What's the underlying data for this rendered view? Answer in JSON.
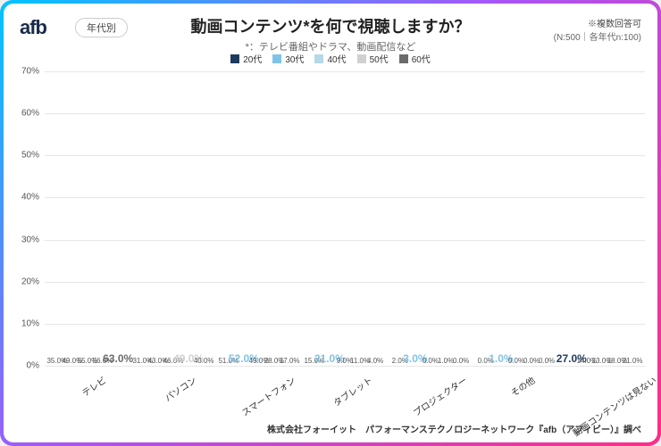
{
  "logo": "afb",
  "badge": "年代別",
  "title": "動画コンテンツ*を何で視聴しますか？",
  "subtitle": "*：テレビ番組やドラマ、動画配信など",
  "note_top": "※複数回答可",
  "note_n": "(N:500｜各年代n:100)",
  "footer": "株式会社フォーイット　パフォーマンステクノロジーネットワーク『afb（アフィビー）』調べ",
  "ymax": 70,
  "yticks": [
    0,
    10,
    20,
    30,
    40,
    50,
    60,
    70
  ],
  "series": [
    {
      "label": "20代",
      "color": "#1f3a5f"
    },
    {
      "label": "30代",
      "color": "#7fc4e8"
    },
    {
      "label": "40代",
      "color": "#b6d8e8"
    },
    {
      "label": "50代",
      "color": "#d0d0d0"
    },
    {
      "label": "60代",
      "color": "#6b6b6b"
    }
  ],
  "categories": [
    {
      "label": "テレビ",
      "values": [
        35.0,
        49.0,
        55.0,
        56.0,
        63.0
      ],
      "highlight_idx": 4
    },
    {
      "label": "パソコン",
      "values": [
        31.0,
        43.0,
        46.0,
        49.0,
        40.0
      ],
      "highlight_idx": 3
    },
    {
      "label": "スマートフォン",
      "values": [
        51.0,
        52.0,
        49.0,
        28.0,
        17.0
      ],
      "highlight_idx": 1
    },
    {
      "label": "タブレット",
      "values": [
        15.0,
        21.0,
        9.0,
        11.0,
        4.0
      ],
      "highlight_idx": 1
    },
    {
      "label": "プロジェクター",
      "values": [
        2.0,
        3.0,
        0.0,
        1.0,
        0.0
      ],
      "highlight_idx": 1
    },
    {
      "label": "その他",
      "values": [
        0.0,
        1.0,
        0.0,
        0.0,
        0.0
      ],
      "highlight_idx": 1
    },
    {
      "label": "動画コンテンツは見ない",
      "values": [
        27.0,
        14.0,
        13.0,
        18.0,
        21.0
      ],
      "highlight_idx": 0
    }
  ]
}
